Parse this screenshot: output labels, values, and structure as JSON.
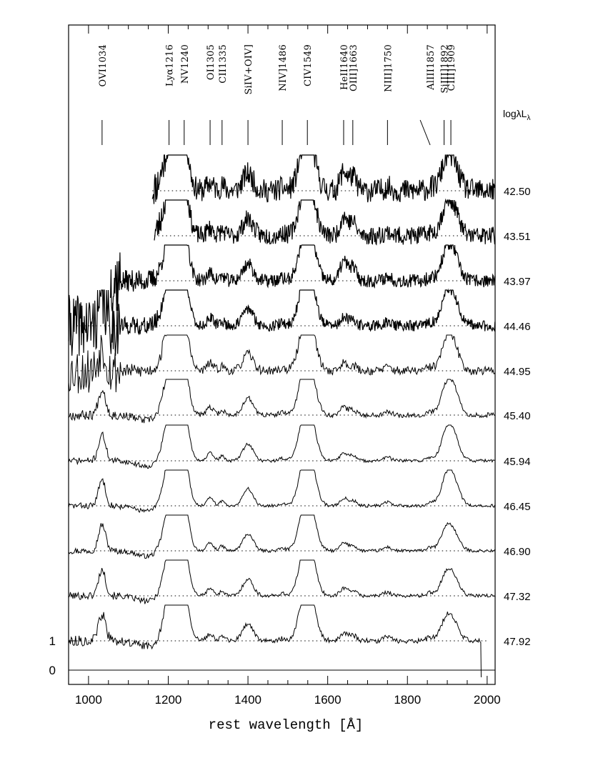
{
  "chart_data": {
    "type": "line",
    "xlabel": "rest wavelength [Å]",
    "xlim": [
      950,
      2020
    ],
    "x_ticks": [
      {
        "value": 1000,
        "label": "1000"
      },
      {
        "value": 1200,
        "label": "1200"
      },
      {
        "value": 1400,
        "label": "1400"
      },
      {
        "value": 1600,
        "label": "1600"
      },
      {
        "value": 1800,
        "label": "1800"
      },
      {
        "value": 2000,
        "label": "2000"
      }
    ],
    "y_ticks": [
      {
        "value": 1,
        "label": "1"
      },
      {
        "value": 0,
        "label": "0"
      }
    ],
    "luminosity_header": "logλL",
    "luminosity_header_sub": "λ",
    "emission_lines": [
      {
        "label": "OVI1034",
        "wavelength": 1034
      },
      {
        "label": "Lyα1216",
        "wavelength": 1202
      },
      {
        "label": "NV1240",
        "wavelength": 1240
      },
      {
        "label": "OI1305",
        "wavelength": 1305
      },
      {
        "label": "CII1335",
        "wavelength": 1335
      },
      {
        "label": "SiIV+OIV]",
        "wavelength": 1400
      },
      {
        "label": "NIV]1486",
        "wavelength": 1486
      },
      {
        "label": "CIV1549",
        "wavelength": 1549
      },
      {
        "label": "HeII1640",
        "wavelength": 1640
      },
      {
        "label": "OIII]1663",
        "wavelength": 1663
      },
      {
        "label": "NIII]1750",
        "wavelength": 1750
      },
      {
        "label": "AlIII1857",
        "wavelength": 1857
      },
      {
        "label": "SiIII]1892",
        "wavelength": 1892
      },
      {
        "label": "CIII]1909",
        "wavelength": 1909
      }
    ],
    "series": [
      {
        "name": "42.50",
        "start": 1160,
        "end": 2020,
        "noise": 0.38,
        "seed": 11
      },
      {
        "name": "43.51",
        "start": 1165,
        "end": 2020,
        "noise": 0.3,
        "seed": 23
      },
      {
        "name": "43.97",
        "start": 1055,
        "end": 2020,
        "noise": 0.22,
        "seed": 37
      },
      {
        "name": "44.46",
        "start": 950,
        "end": 2020,
        "noise": 0.18,
        "seed": 41
      },
      {
        "name": "44.95",
        "start": 950,
        "end": 2020,
        "noise": 0.14,
        "seed": 53
      },
      {
        "name": "45.40",
        "start": 950,
        "end": 2020,
        "noise": 0.08,
        "seed": 67
      },
      {
        "name": "45.94",
        "start": 950,
        "end": 2020,
        "noise": 0.05,
        "seed": 71
      },
      {
        "name": "46.45",
        "start": 950,
        "end": 2020,
        "noise": 0.05,
        "seed": 83
      },
      {
        "name": "46.90",
        "start": 950,
        "end": 2020,
        "noise": 0.05,
        "seed": 97
      },
      {
        "name": "47.32",
        "start": 950,
        "end": 2020,
        "noise": 0.06,
        "seed": 101
      },
      {
        "name": "47.92",
        "start": 950,
        "end": 1985,
        "noise": 0.08,
        "seed": 113
      }
    ]
  }
}
